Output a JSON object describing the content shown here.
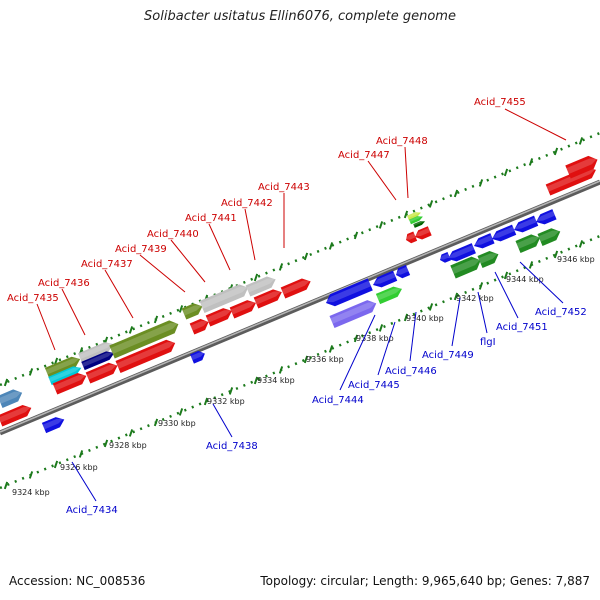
{
  "title": "Solibacter usitatus Ellin6076, complete genome",
  "footer": {
    "accession": "Accession: NC_008536",
    "stats": "Topology: circular; Length: 9,965,640 bp; Genes: 7,887"
  },
  "colors": {
    "upper_label": "#cc0000",
    "lower_label": "#0000cc",
    "forward_gene": "#e01010",
    "reverse_gene": "#1010e0",
    "backbone": "#8c8c8c",
    "tick": "#1c7a1c"
  },
  "scale_ticks": [
    "9324 kbp",
    "9326 kbp",
    "9328 kbp",
    "9330 kbp",
    "9332 kbp",
    "9334 kbp",
    "9336 kbp",
    "9338 kbp",
    "9340 kbp",
    "9342 kbp",
    "9344 kbp",
    "9346 kbp"
  ],
  "upper_labels": [
    "Acid_7435",
    "Acid_7436",
    "Acid_7437",
    "Acid_7439",
    "Acid_7440",
    "Acid_7441",
    "Acid_7442",
    "Acid_7443",
    "Acid_7447",
    "Acid_7448",
    "Acid_7455"
  ],
  "lower_labels": [
    "Acid_7434",
    "Acid_7438",
    "Acid_7444",
    "Acid_7445",
    "Acid_7446",
    "Acid_7449",
    "flgI",
    "Acid_7451",
    "Acid_7452"
  ]
}
